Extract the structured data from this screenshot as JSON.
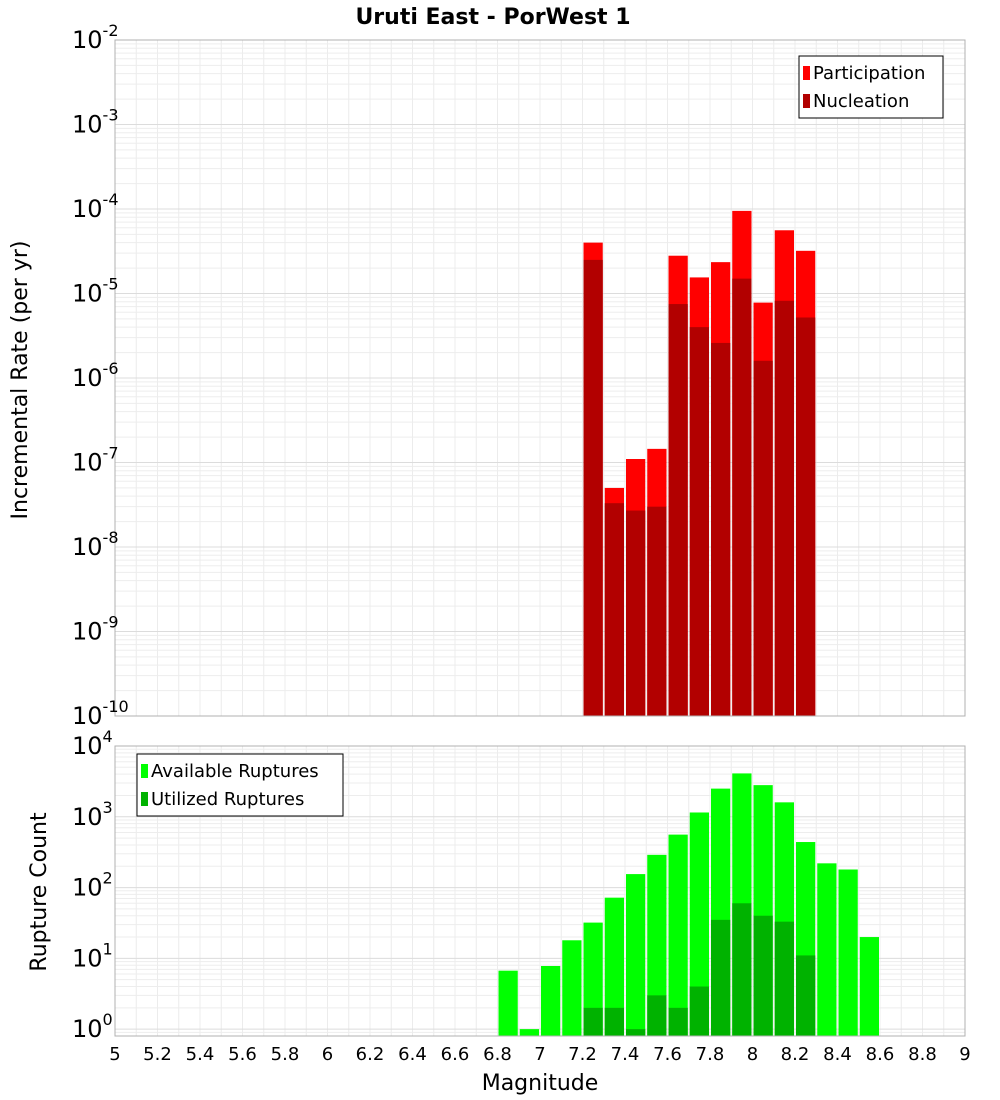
{
  "chart_data": [
    {
      "type": "bar",
      "title": "Uruti East - PorWest 1",
      "xlabel": "",
      "ylabel": "Incremental Rate (per yr)",
      "yscale": "log",
      "ylim": [
        1e-10,
        0.01
      ],
      "xlim": [
        5,
        9
      ],
      "ytick_exponents": [
        -10,
        -9,
        -8,
        -7,
        -6,
        -5,
        -4,
        -3,
        -2
      ],
      "grid": true,
      "legend": {
        "placement": "top-right",
        "entries": [
          "Participation",
          "Nucleation"
        ]
      },
      "colors": {
        "Participation": "#ff0000",
        "Nucleation": "#b20000"
      },
      "x": [
        7.25,
        7.35,
        7.45,
        7.55,
        7.65,
        7.75,
        7.85,
        7.95,
        8.05,
        8.15,
        8.25
      ],
      "series": [
        {
          "name": "Participation",
          "values": [
            4e-05,
            5e-08,
            1.1e-07,
            1.45e-07,
            2.8e-05,
            1.55e-05,
            2.35e-05,
            9.5e-05,
            7.8e-06,
            5.6e-05,
            3.2e-05
          ]
        },
        {
          "name": "Nucleation",
          "values": [
            2.5e-05,
            3.3e-08,
            2.7e-08,
            3e-08,
            7.5e-06,
            4e-06,
            2.6e-06,
            1.5e-05,
            1.6e-06,
            8.2e-06,
            5.2e-06
          ]
        }
      ]
    },
    {
      "type": "bar",
      "title": "",
      "xlabel": "Magnitude",
      "ylabel": "Rupture Count",
      "yscale": "log",
      "ylim": [
        0.8,
        10000.0
      ],
      "xlim": [
        5,
        9
      ],
      "ytick_exponents": [
        0,
        1,
        2,
        3,
        4
      ],
      "xticks": [
        "5",
        "5.2",
        "5.4",
        "5.6",
        "5.8",
        "6",
        "6.2",
        "6.4",
        "6.6",
        "6.8",
        "7",
        "7.2",
        "7.4",
        "7.6",
        "7.8",
        "8",
        "8.2",
        "8.4",
        "8.6",
        "8.8",
        "9"
      ],
      "grid": true,
      "legend": {
        "placement": "top-left",
        "entries": [
          "Available Ruptures",
          "Utilized Ruptures"
        ]
      },
      "colors": {
        "Available Ruptures": "#00ff00",
        "Utilized Ruptures": "#00b200"
      },
      "x": [
        6.85,
        6.95,
        7.05,
        7.15,
        7.25,
        7.35,
        7.45,
        7.55,
        7.65,
        7.75,
        7.85,
        7.95,
        8.05,
        8.15,
        8.25,
        8.35,
        8.45,
        8.55
      ],
      "series": [
        {
          "name": "Available Ruptures",
          "values": [
            6.7,
            1,
            7.8,
            18,
            32,
            72,
            155,
            290,
            560,
            1150,
            2500,
            4100,
            2800,
            1600,
            440,
            220,
            180,
            20
          ]
        },
        {
          "name": "Utilized Ruptures",
          "values": [
            null,
            null,
            null,
            null,
            2,
            2,
            1,
            3,
            2,
            4,
            35,
            60,
            40,
            33,
            11,
            null,
            null,
            null
          ]
        }
      ]
    }
  ]
}
